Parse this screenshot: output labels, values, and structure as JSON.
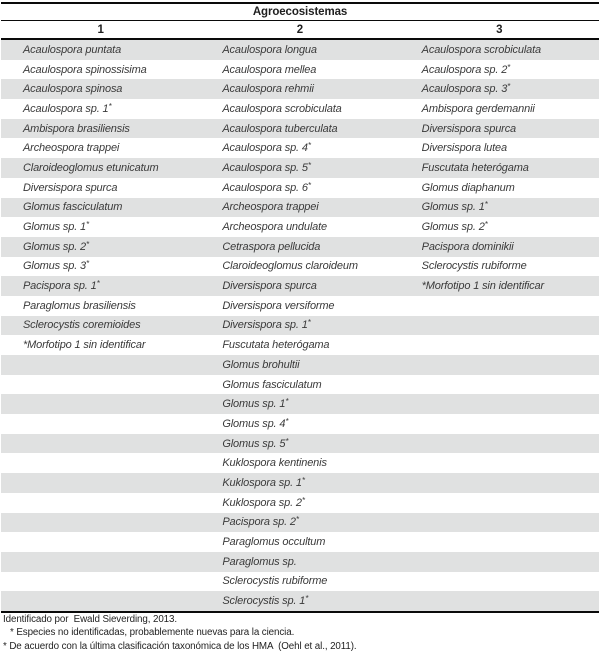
{
  "table": {
    "title": "Agroecosistemas",
    "column_headers": [
      "1",
      "2",
      "3"
    ],
    "columns": [
      [
        "Acaulospora puntata",
        "Acaulospora spinossisima",
        "Acaulospora spinosa",
        "Acaulospora sp. 1*",
        "Ambispora brasiliensis",
        "Archeospora trappei",
        "Claroideoglomus etunicatum",
        "Diversispora spurca",
        "Glomus fasciculatum",
        "Glomus sp. 1*",
        "Glomus sp. 2*",
        "Glomus sp. 3*",
        "Pacispora sp. 1*",
        "Paraglomus brasiliensis",
        "Sclerocystis coremioides",
        "*Morfotipo 1 sin identificar"
      ],
      [
        "Acaulospora longua",
        "Acaulospora mellea",
        "Acaulospora rehmii",
        "Acaulospora scrobiculata",
        "Acaulospora tuberculata",
        "Acaulospora sp. 4*",
        "Acaulospora sp. 5*",
        "Acaulospora sp. 6*",
        "Archeospora trappei",
        "Archeospora undulate",
        "Cetraspora pellucida",
        "Claroideoglomus claroideum",
        "Diversispora spurca",
        "Diversispora versiforme",
        "Diversispora sp. 1*",
        "Fuscutata heterógama",
        "Glomus brohultii",
        "Glomus fasciculatum",
        "Glomus sp. 1*",
        "Glomus sp. 4*",
        "Glomus sp. 5*",
        "Kuklospora kentinenis",
        "Kuklospora sp. 1*",
        "Kuklospora sp. 2*",
        "Pacispora sp. 2*",
        "Paraglomus occultum",
        "Paraglomus sp.",
        "Sclerocystis rubiforme",
        "Sclerocystis sp. 1*"
      ],
      [
        "Acaulospora scrobiculata",
        "Acaulospora sp. 2*",
        "Acaulospora sp. 3*",
        "Ambispora gerdemannii",
        "Diversispora spurca",
        "Diversispora lutea",
        "Fuscutata heterógama",
        "Glomus diaphanum",
        "Glomus sp. 1*",
        "Glomus sp. 2*",
        "Pacispora dominikii",
        "Sclerocystis rubiforme",
        "*Morfotipo 1 sin identificar"
      ]
    ]
  },
  "footnotes": [
    {
      "text": "Identificado por  Ewald Sieverding, 2013."
    },
    {
      "text": "* Especies no identificadas, probablemente nuevas para la ciencia."
    },
    {
      "text": "* De acuerdo con la última clasificación taxonómica de los HMA  (Oehl et al., 2011)."
    }
  ],
  "colors": {
    "stripe": "#e0e1e1",
    "border": "#0a0a0a",
    "species_text": "#3a3a3a"
  }
}
